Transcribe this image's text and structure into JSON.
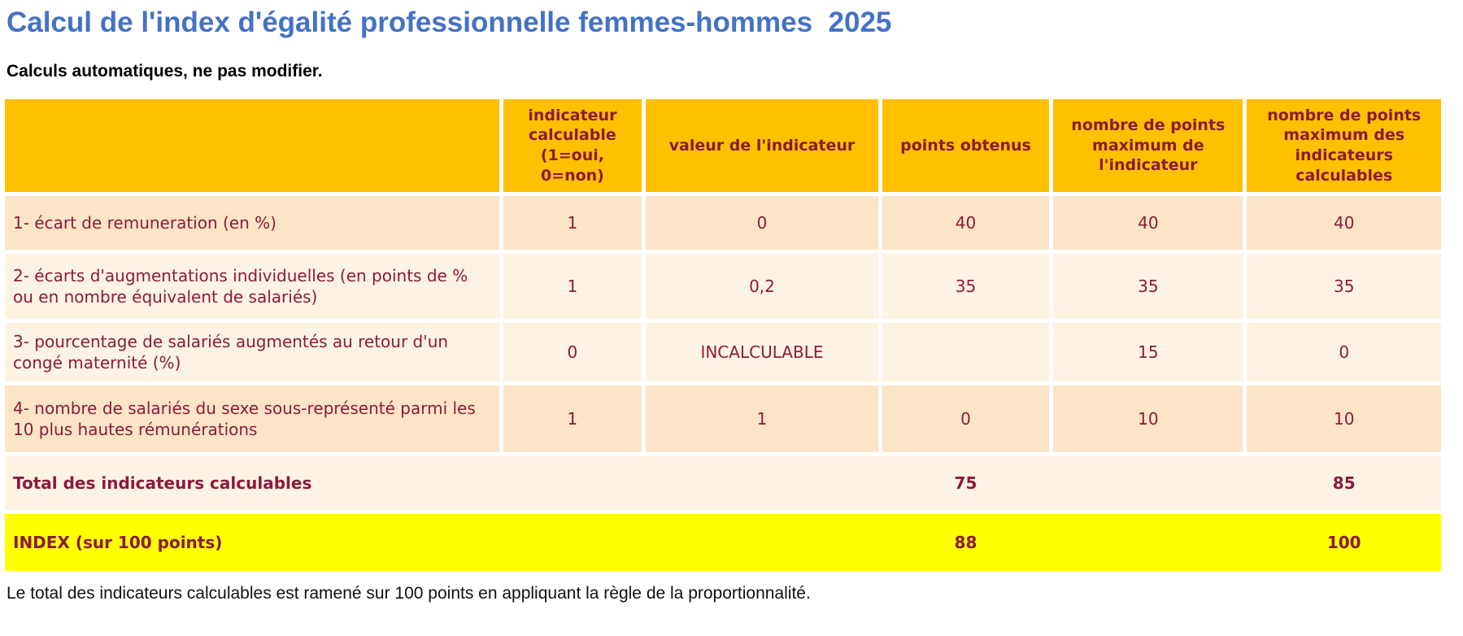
{
  "page": {
    "title": "Calcul de l'index d'égalité professionnelle femmes-hommes  2025",
    "subtitle": "Calculs automatiques, ne pas modifier.",
    "footnote": "Le total des indicateurs calculables est ramené sur 100 points en appliquant la règle de la proportionnalité."
  },
  "colors": {
    "title_blue": "#4472C4",
    "header_gold": "#FFC000",
    "text_maroon": "#8B1A3C",
    "row_peach": "#FBE5C6",
    "row_cream": "#FDF3E2",
    "index_yellow": "#FFFF00"
  },
  "table": {
    "columns": [
      {
        "label": ""
      },
      {
        "label": "indicateur calculable (1=oui, 0=non)"
      },
      {
        "label": "valeur de l'indicateur"
      },
      {
        "label": "points obtenus"
      },
      {
        "label": "nombre de points maximum de l'indicateur"
      },
      {
        "label": "nombre de points maximum des indicateurs calculables"
      }
    ],
    "rows": [
      {
        "label": "1- écart de remuneration (en %)",
        "calculable": "1",
        "valeur": "0",
        "points": "40",
        "max_indicateur": "40",
        "max_calculables": "40"
      },
      {
        "label": "2- écarts d'augmentations individuelles (en points de % ou en nombre équivalent de salariés)",
        "calculable": "1",
        "valeur": "0,2",
        "points": "35",
        "max_indicateur": "35",
        "max_calculables": "35"
      },
      {
        "label": "3- pourcentage de salariés augmentés au retour d'un congé maternité (%)",
        "calculable": "0",
        "valeur": "INCALCULABLE",
        "points": "",
        "max_indicateur": "15",
        "max_calculables": "0"
      },
      {
        "label": "4- nombre de salariés du sexe sous-représenté parmi les 10 plus hautes rémunérations",
        "calculable": "1",
        "valeur": "1",
        "points": "0",
        "max_indicateur": "10",
        "max_calculables": "10"
      }
    ],
    "total_row": {
      "label": "Total des indicateurs calculables",
      "points": "75",
      "max_calculables": "85"
    },
    "index_row": {
      "label": "INDEX (sur 100 points)",
      "points": "88",
      "max_calculables": "100"
    }
  }
}
